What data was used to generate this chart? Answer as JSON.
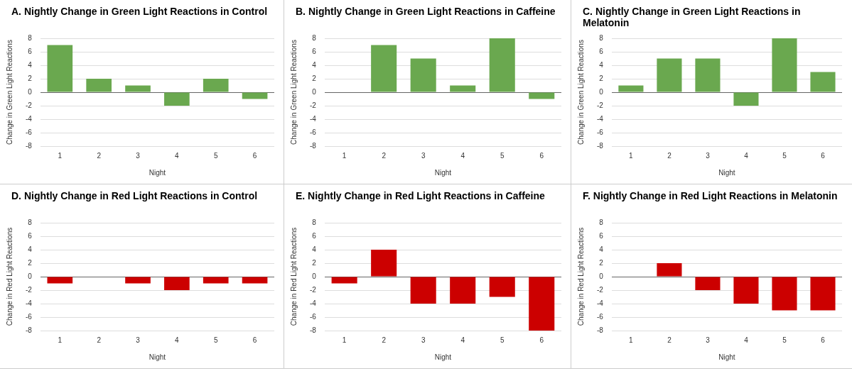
{
  "chart_data": [
    {
      "type": "bar",
      "title": "A. Nightly Change in Green Light Reactions in Control",
      "xlabel": "Night",
      "ylabel": "Change in Green Light Reactions",
      "categories": [
        "1",
        "2",
        "3",
        "4",
        "5",
        "6"
      ],
      "values": [
        7,
        2,
        1,
        -2,
        2,
        -1
      ],
      "color": "#6aa84f",
      "ylim": [
        -8,
        8
      ],
      "yticks": [
        -8,
        -6,
        -4,
        -2,
        0,
        2,
        4,
        6,
        8
      ],
      "grid": "y"
    },
    {
      "type": "bar",
      "title": "B. Nightly Change in Green Light Reactions in Caffeine",
      "xlabel": "Night",
      "ylabel": "Change in Green Light Reactions",
      "categories": [
        "1",
        "2",
        "3",
        "4",
        "5",
        "6"
      ],
      "values": [
        0,
        7,
        5,
        1,
        8,
        -1
      ],
      "color": "#6aa84f",
      "ylim": [
        -8,
        8
      ],
      "yticks": [
        -8,
        -6,
        -4,
        -2,
        0,
        2,
        4,
        6,
        8
      ],
      "grid": "y"
    },
    {
      "type": "bar",
      "title": "C. Nightly Change in Green Light Reactions in Melatonin",
      "xlabel": "Night",
      "ylabel": "Change in Green Light Reactions",
      "categories": [
        "1",
        "2",
        "3",
        "4",
        "5",
        "6"
      ],
      "values": [
        1,
        5,
        5,
        -2,
        8,
        3
      ],
      "color": "#6aa84f",
      "ylim": [
        -8,
        8
      ],
      "yticks": [
        -8,
        -6,
        -4,
        -2,
        0,
        2,
        4,
        6,
        8
      ],
      "grid": "y"
    },
    {
      "type": "bar",
      "title": "D. Nightly Change in Red Light Reactions in Control",
      "xlabel": "Night",
      "ylabel": "Change in Red Light Reactions",
      "categories": [
        "1",
        "2",
        "3",
        "4",
        "5",
        "6"
      ],
      "values": [
        -1,
        0,
        -1,
        -2,
        -1,
        -1
      ],
      "color": "#cc0000",
      "ylim": [
        -8,
        8
      ],
      "yticks": [
        -8,
        -6,
        -4,
        -2,
        0,
        2,
        4,
        6,
        8
      ],
      "grid": "y"
    },
    {
      "type": "bar",
      "title": "E. Nightly Change in Red Light Reactions in Caffeine",
      "xlabel": "Night",
      "ylabel": "Change in Red Light Reactions",
      "categories": [
        "1",
        "2",
        "3",
        "4",
        "5",
        "6"
      ],
      "values": [
        -1,
        4,
        -4,
        -4,
        -3,
        -8
      ],
      "color": "#cc0000",
      "ylim": [
        -8,
        8
      ],
      "yticks": [
        -8,
        -6,
        -4,
        -2,
        0,
        2,
        4,
        6,
        8
      ],
      "grid": "y"
    },
    {
      "type": "bar",
      "title": "F. Nightly Change in Red Light Reactions in Melatonin",
      "xlabel": "Night",
      "ylabel": "Change in Red Light Reactions",
      "categories": [
        "1",
        "2",
        "3",
        "4",
        "5",
        "6"
      ],
      "values": [
        0,
        2,
        -2,
        -4,
        -5,
        -5
      ],
      "color": "#cc0000",
      "ylim": [
        -8,
        8
      ],
      "yticks": [
        -8,
        -6,
        -4,
        -2,
        0,
        2,
        4,
        6,
        8
      ],
      "grid": "y"
    }
  ]
}
